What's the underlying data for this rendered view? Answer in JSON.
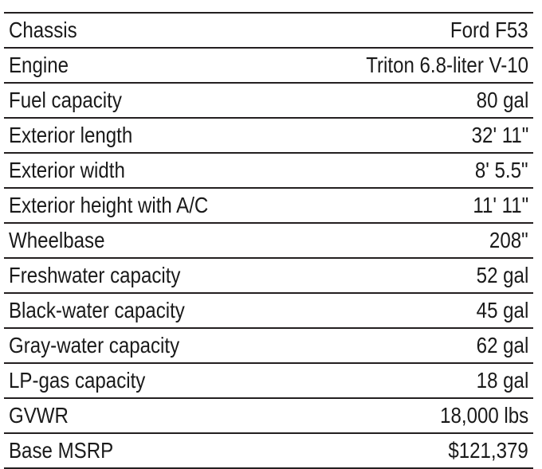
{
  "specs": [
    {
      "label": "Chassis",
      "value": "Ford F53"
    },
    {
      "label": "Engine",
      "value": "Triton 6.8-liter V-10"
    },
    {
      "label": "Fuel capacity",
      "value": "80 gal"
    },
    {
      "label": "Exterior length",
      "value": "32' 11\""
    },
    {
      "label": "Exterior width",
      "value": "8' 5.5\""
    },
    {
      "label": "Exterior height with A/C",
      "value": "11' 11\""
    },
    {
      "label": "Wheelbase",
      "value": "208\""
    },
    {
      "label": "Freshwater capacity",
      "value": "52 gal"
    },
    {
      "label": "Black-water capacity",
      "value": "45 gal"
    },
    {
      "label": "Gray-water capacity",
      "value": "62 gal"
    },
    {
      "label": "LP-gas capacity",
      "value": "18 gal"
    },
    {
      "label": "GVWR",
      "value": "18,000 lbs"
    },
    {
      "label": "Base MSRP",
      "value": "$121,379"
    }
  ]
}
